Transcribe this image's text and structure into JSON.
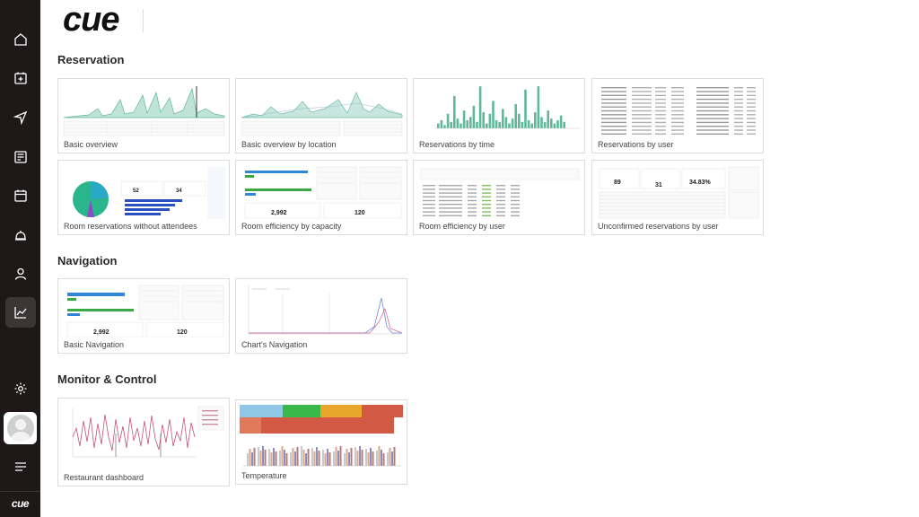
{
  "app": {
    "logo": "cue",
    "sidebar_logo": "cue"
  },
  "sidebar": {
    "items": [
      {
        "name": "home-icon"
      },
      {
        "name": "calendar-plus-icon"
      },
      {
        "name": "navigation-icon"
      },
      {
        "name": "newspaper-icon"
      },
      {
        "name": "calendar-icon"
      },
      {
        "name": "bell-icon"
      },
      {
        "name": "user-icon"
      },
      {
        "name": "chart-icon",
        "active": true
      },
      {
        "name": "gear-icon"
      },
      {
        "name": "menu-icon"
      }
    ]
  },
  "sections": {
    "reservation": {
      "title": "Reservation",
      "cards": [
        "Basic overview",
        "Basic overview by location",
        "Reservations by time",
        "Reservations by user",
        "Room reservations without attendees",
        "Room efficiency by capacity",
        "Room efficiency by user",
        "Unconfirmed reservations by user"
      ]
    },
    "navigation": {
      "title": "Navigation",
      "cards": [
        "Basic Navigation",
        "Chart's Navigation"
      ]
    },
    "monitor": {
      "title": "Monitor & Control",
      "cards": [
        "Restaurant dashboard",
        "Temperature"
      ]
    }
  },
  "thumb_values": {
    "room_stats": [
      "52",
      "34"
    ],
    "capacity_stats": [
      "2,992",
      "120"
    ],
    "unconfirmed_stats": [
      "89",
      "31",
      "34.83%"
    ],
    "navigation_stats": [
      "2,992",
      "120"
    ]
  },
  "colors": {
    "sidebar_bg": "#1e1818",
    "accent_teal": "#5fb89a",
    "active_item": "#3b3535"
  }
}
